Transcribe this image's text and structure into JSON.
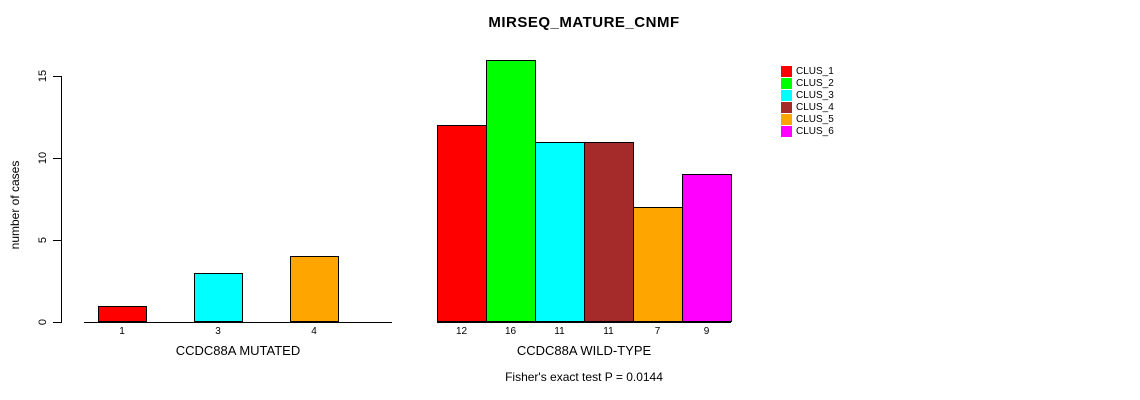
{
  "title": "MIRSEQ_MATURE_CNMF",
  "footnote": "Fisher's exact test P = 0.0144",
  "y_axis": {
    "label": "number of cases",
    "ticks": [
      0,
      5,
      10,
      15
    ]
  },
  "legend": {
    "position": "right-outside",
    "items": [
      {
        "label": "CLUS_1",
        "color": "#FF0000"
      },
      {
        "label": "CLUS_2",
        "color": "#00FF00"
      },
      {
        "label": "CLUS_3",
        "color": "#00FFFF"
      },
      {
        "label": "CLUS_4",
        "color": "#A52A2A"
      },
      {
        "label": "CLUS_5",
        "color": "#FFA500"
      },
      {
        "label": "CLUS_6",
        "color": "#FF00FF"
      }
    ]
  },
  "chart_data": {
    "type": "bar",
    "title": "MIRSEQ_MATURE_CNMF",
    "xlabel": "",
    "ylabel": "number of cases",
    "ylim": [
      0,
      16.5
    ],
    "yticks": [
      0,
      5,
      10,
      15
    ],
    "grid": false,
    "legend_position": "right-outside",
    "annotation": "Fisher's exact test P = 0.0144",
    "groups": [
      {
        "xlabel": "CCDC88A MUTATED",
        "slots_total": 6,
        "bars": [
          {
            "cluster": "CLUS_1",
            "slot": 0,
            "value": 1,
            "label": "1",
            "color": "#FF0000"
          },
          {
            "cluster": "CLUS_3",
            "slot": 2,
            "value": 3,
            "label": "3",
            "color": "#00FFFF"
          },
          {
            "cluster": "CLUS_5",
            "slot": 4,
            "value": 4,
            "label": "4",
            "color": "#FFA500"
          }
        ]
      },
      {
        "xlabel": "CCDC88A WILD-TYPE",
        "slots_total": 6,
        "bars": [
          {
            "cluster": "CLUS_1",
            "slot": 0,
            "value": 12,
            "label": "12",
            "color": "#FF0000"
          },
          {
            "cluster": "CLUS_2",
            "slot": 1,
            "value": 16,
            "label": "16",
            "color": "#00FF00"
          },
          {
            "cluster": "CLUS_3",
            "slot": 2,
            "value": 11,
            "label": "11",
            "color": "#00FFFF"
          },
          {
            "cluster": "CLUS_4",
            "slot": 3,
            "value": 11,
            "label": "11",
            "color": "#A52A2A"
          },
          {
            "cluster": "CLUS_5",
            "slot": 4,
            "value": 7,
            "label": "7",
            "color": "#FFA500"
          },
          {
            "cluster": "CLUS_6",
            "slot": 5,
            "value": 9,
            "label": "9",
            "color": "#FF00FF"
          }
        ]
      }
    ]
  }
}
